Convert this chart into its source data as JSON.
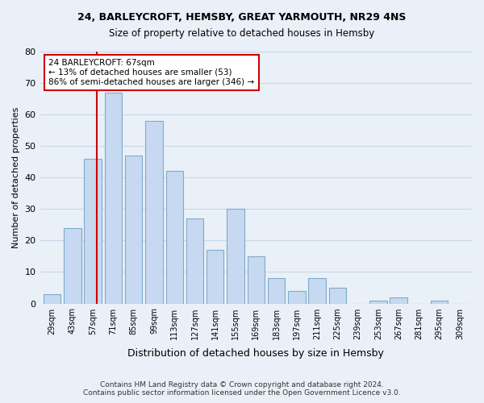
{
  "title1": "24, BARLEYCROFT, HEMSBY, GREAT YARMOUTH, NR29 4NS",
  "title2": "Size of property relative to detached houses in Hemsby",
  "xlabel": "Distribution of detached houses by size in Hemsby",
  "ylabel": "Number of detached properties",
  "bin_labels": [
    "29sqm",
    "43sqm",
    "57sqm",
    "71sqm",
    "85sqm",
    "99sqm",
    "113sqm",
    "127sqm",
    "141sqm",
    "155sqm",
    "169sqm",
    "183sqm",
    "197sqm",
    "211sqm",
    "225sqm",
    "239sqm",
    "253sqm",
    "267sqm",
    "281sqm",
    "295sqm",
    "309sqm"
  ],
  "bar_values": [
    3,
    24,
    46,
    67,
    47,
    58,
    42,
    27,
    17,
    30,
    15,
    8,
    4,
    8,
    5,
    0,
    1,
    2,
    0,
    1,
    0
  ],
  "bar_color": "#c6d9f0",
  "bar_edge_color": "#7faacc",
  "property_line_color": "#cc0000",
  "annotation_text": "24 BARLEYCROFT: 67sqm\n← 13% of detached houses are smaller (53)\n86% of semi-detached houses are larger (346) →",
  "annotation_box_color": "white",
  "annotation_box_edge_color": "#cc0000",
  "ylim": [
    0,
    80
  ],
  "yticks": [
    0,
    10,
    20,
    30,
    40,
    50,
    60,
    70,
    80
  ],
  "grid_color": "#c8d8e8",
  "bg_color": "#eaf0f8",
  "footer_line1": "Contains HM Land Registry data © Crown copyright and database right 2024.",
  "footer_line2": "Contains public sector information licensed under the Open Government Licence v3.0.",
  "bin_starts": [
    29,
    43,
    57,
    71,
    85,
    99,
    113,
    127,
    141,
    155,
    169,
    183,
    197,
    211,
    225,
    239,
    253,
    267,
    281,
    295,
    309
  ],
  "bin_width": 14,
  "property_sqm": 67
}
